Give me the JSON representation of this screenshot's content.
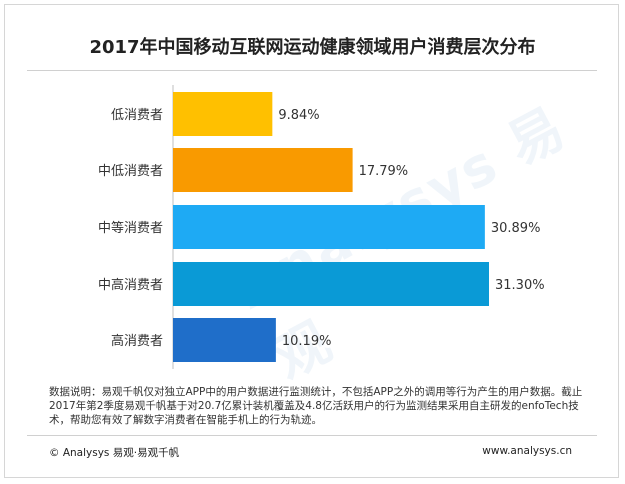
{
  "chart_data": {
    "type": "bar",
    "orientation": "horizontal",
    "title": "2017年中国移动互联网运动健康领域用户消费层次分布",
    "categories": [
      "低消费者",
      "中低消费者",
      "中等消费者",
      "中高消费者",
      "高消费者"
    ],
    "values": [
      9.84,
      17.79,
      30.89,
      31.3,
      10.19
    ],
    "value_labels": [
      "9.84%",
      "17.79%",
      "30.89%",
      "31.30%",
      "10.19%"
    ],
    "colors": [
      "#ffc000",
      "#f99a00",
      "#1eaaf4",
      "#0a9ad6",
      "#1f6ec9"
    ],
    "xlim": [
      0,
      31.3
    ],
    "grid": false,
    "legend": "none"
  },
  "note": "数据说明：易观千帆仅对独立APP中的用户数据进行监测统计，不包括APP之外的调用等行为产生的用户数据。截止2017年第2季度易观千帆基于对20.7亿累计装机覆盖及4.8亿活跃用户的行为监测结果采用自主研发的enfoTech技术，帮助您有效了解数字消费者在智能手机上的行为轨迹。",
  "footer": {
    "left": "© Analysys 易观·易观千帆",
    "right": "www.analysys.cn"
  },
  "watermark": "Analysys 易观"
}
